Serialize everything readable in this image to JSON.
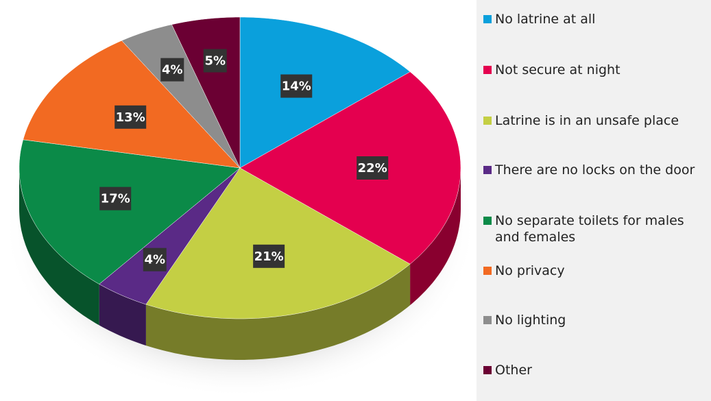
{
  "chart_data": {
    "type": "pie",
    "categories": [
      "No latrine at all",
      "Not secure at night",
      "Latrine is in an unsafe place",
      "There are no locks on the door",
      "No separate toilets for males and females",
      "No privacy",
      "No lighting",
      "Other"
    ],
    "values": [
      14,
      22,
      21,
      4,
      17,
      13,
      4,
      5
    ],
    "value_labels": [
      "14%",
      "22%",
      "21%",
      "4%",
      "17%",
      "13%",
      "4%",
      "5%"
    ],
    "colors": [
      "#0aa0dc",
      "#e4004f",
      "#c4cf44",
      "#5a2a86",
      "#0b8a48",
      "#f26a22",
      "#8d8d8d",
      "#6b0033"
    ]
  }
}
